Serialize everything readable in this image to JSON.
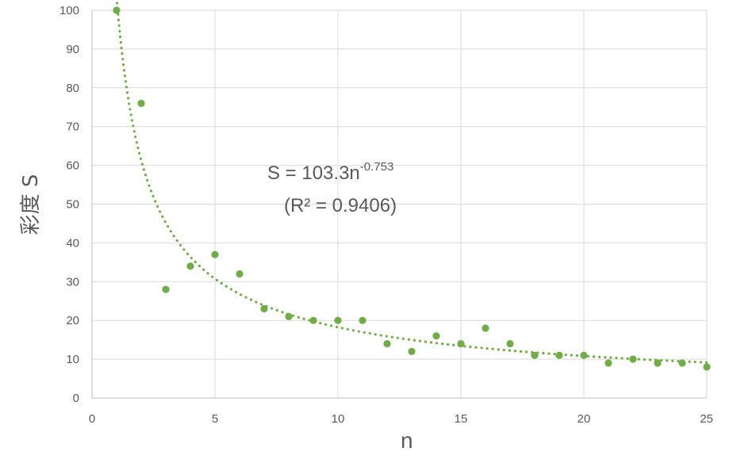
{
  "chart_data": {
    "type": "scatter",
    "xlabel": "n",
    "ylabel": "彩度 S",
    "xlim": [
      0,
      25
    ],
    "ylim": [
      0,
      100
    ],
    "xticks": [
      0,
      5,
      10,
      15,
      20,
      25
    ],
    "yticks": [
      0,
      10,
      20,
      30,
      40,
      50,
      60,
      70,
      80,
      90,
      100
    ],
    "grid": true,
    "marker_color": "#70AD47",
    "series": [
      {
        "x": [
          1,
          2,
          3,
          4,
          5,
          6,
          7,
          8,
          9,
          10,
          11,
          12,
          13,
          14,
          15,
          16,
          17,
          18,
          19,
          20,
          21,
          22,
          23,
          24,
          25
        ],
        "y": [
          100,
          76,
          28,
          34,
          37,
          32,
          23,
          21,
          20,
          20,
          20,
          14,
          12,
          16,
          14,
          18,
          14,
          11,
          11,
          11,
          9,
          10,
          9,
          9,
          8
        ]
      }
    ],
    "trendline": {
      "type": "power",
      "a": 103.3,
      "b": -0.753,
      "style": "dotted",
      "equation_main": "S = 103.3n",
      "equation_exp": "-0.753",
      "r2_text": "(R² = 0.9406)"
    }
  }
}
